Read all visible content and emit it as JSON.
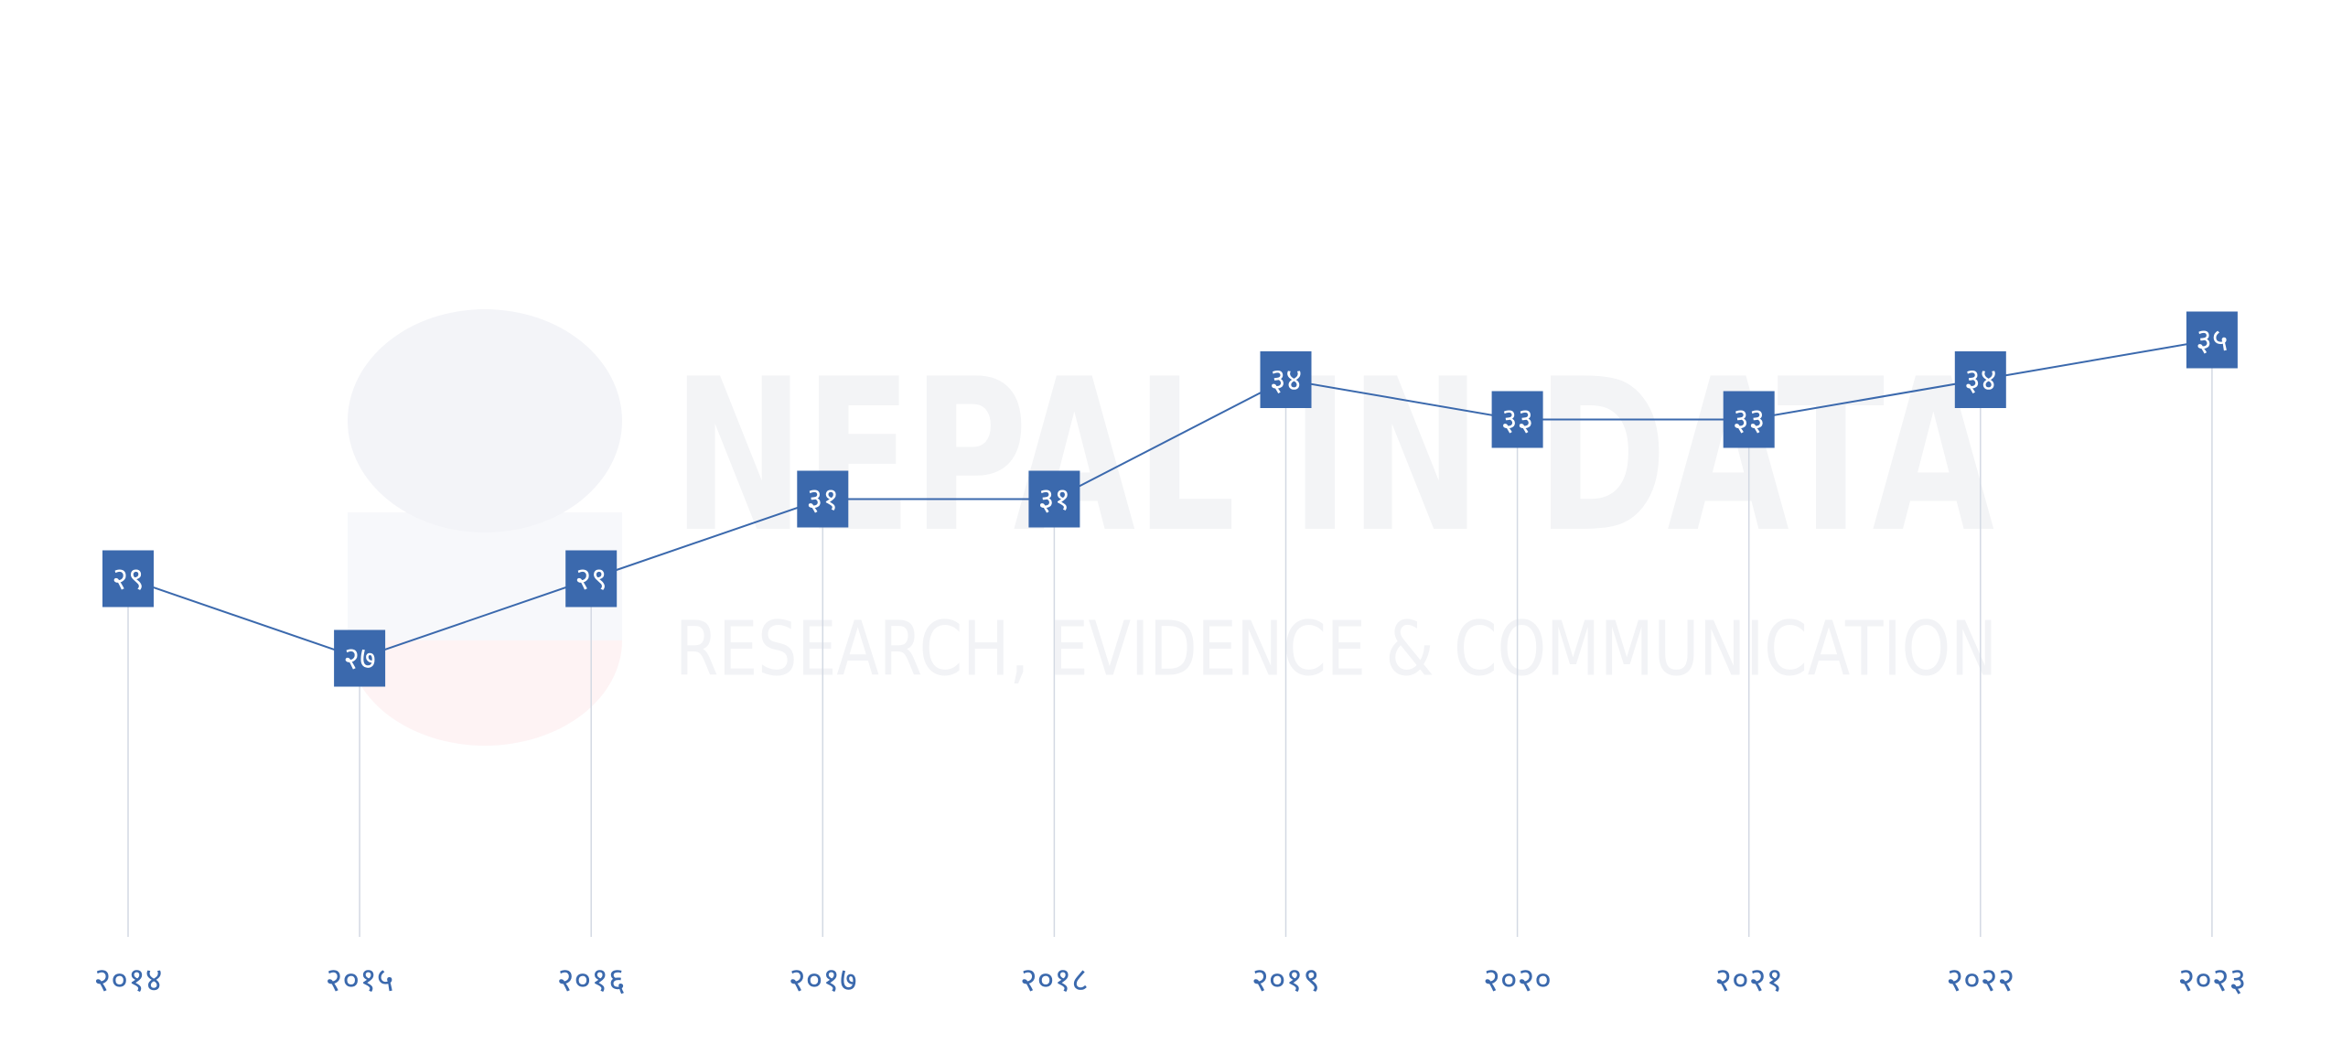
{
  "chart_data": {
    "type": "line",
    "categories": [
      "२०१४",
      "२०१५",
      "२०१६",
      "२०१७",
      "२०१८",
      "२०१९",
      "२०२०",
      "२०२१",
      "२०२२",
      "२०२३"
    ],
    "values": [
      29,
      27,
      29,
      31,
      31,
      34,
      33,
      33,
      34,
      35
    ],
    "value_labels": [
      "२९",
      "२७",
      "२९",
      "३१",
      "३१",
      "३४",
      "३३",
      "३३",
      "३४",
      "३५"
    ],
    "color": "#3b69ad",
    "ylim": [
      20,
      44
    ],
    "watermark_title": "NEPAL IN DATA",
    "watermark_subtitle": "RESEARCH, EVIDENCE & COMMUNICATION"
  }
}
